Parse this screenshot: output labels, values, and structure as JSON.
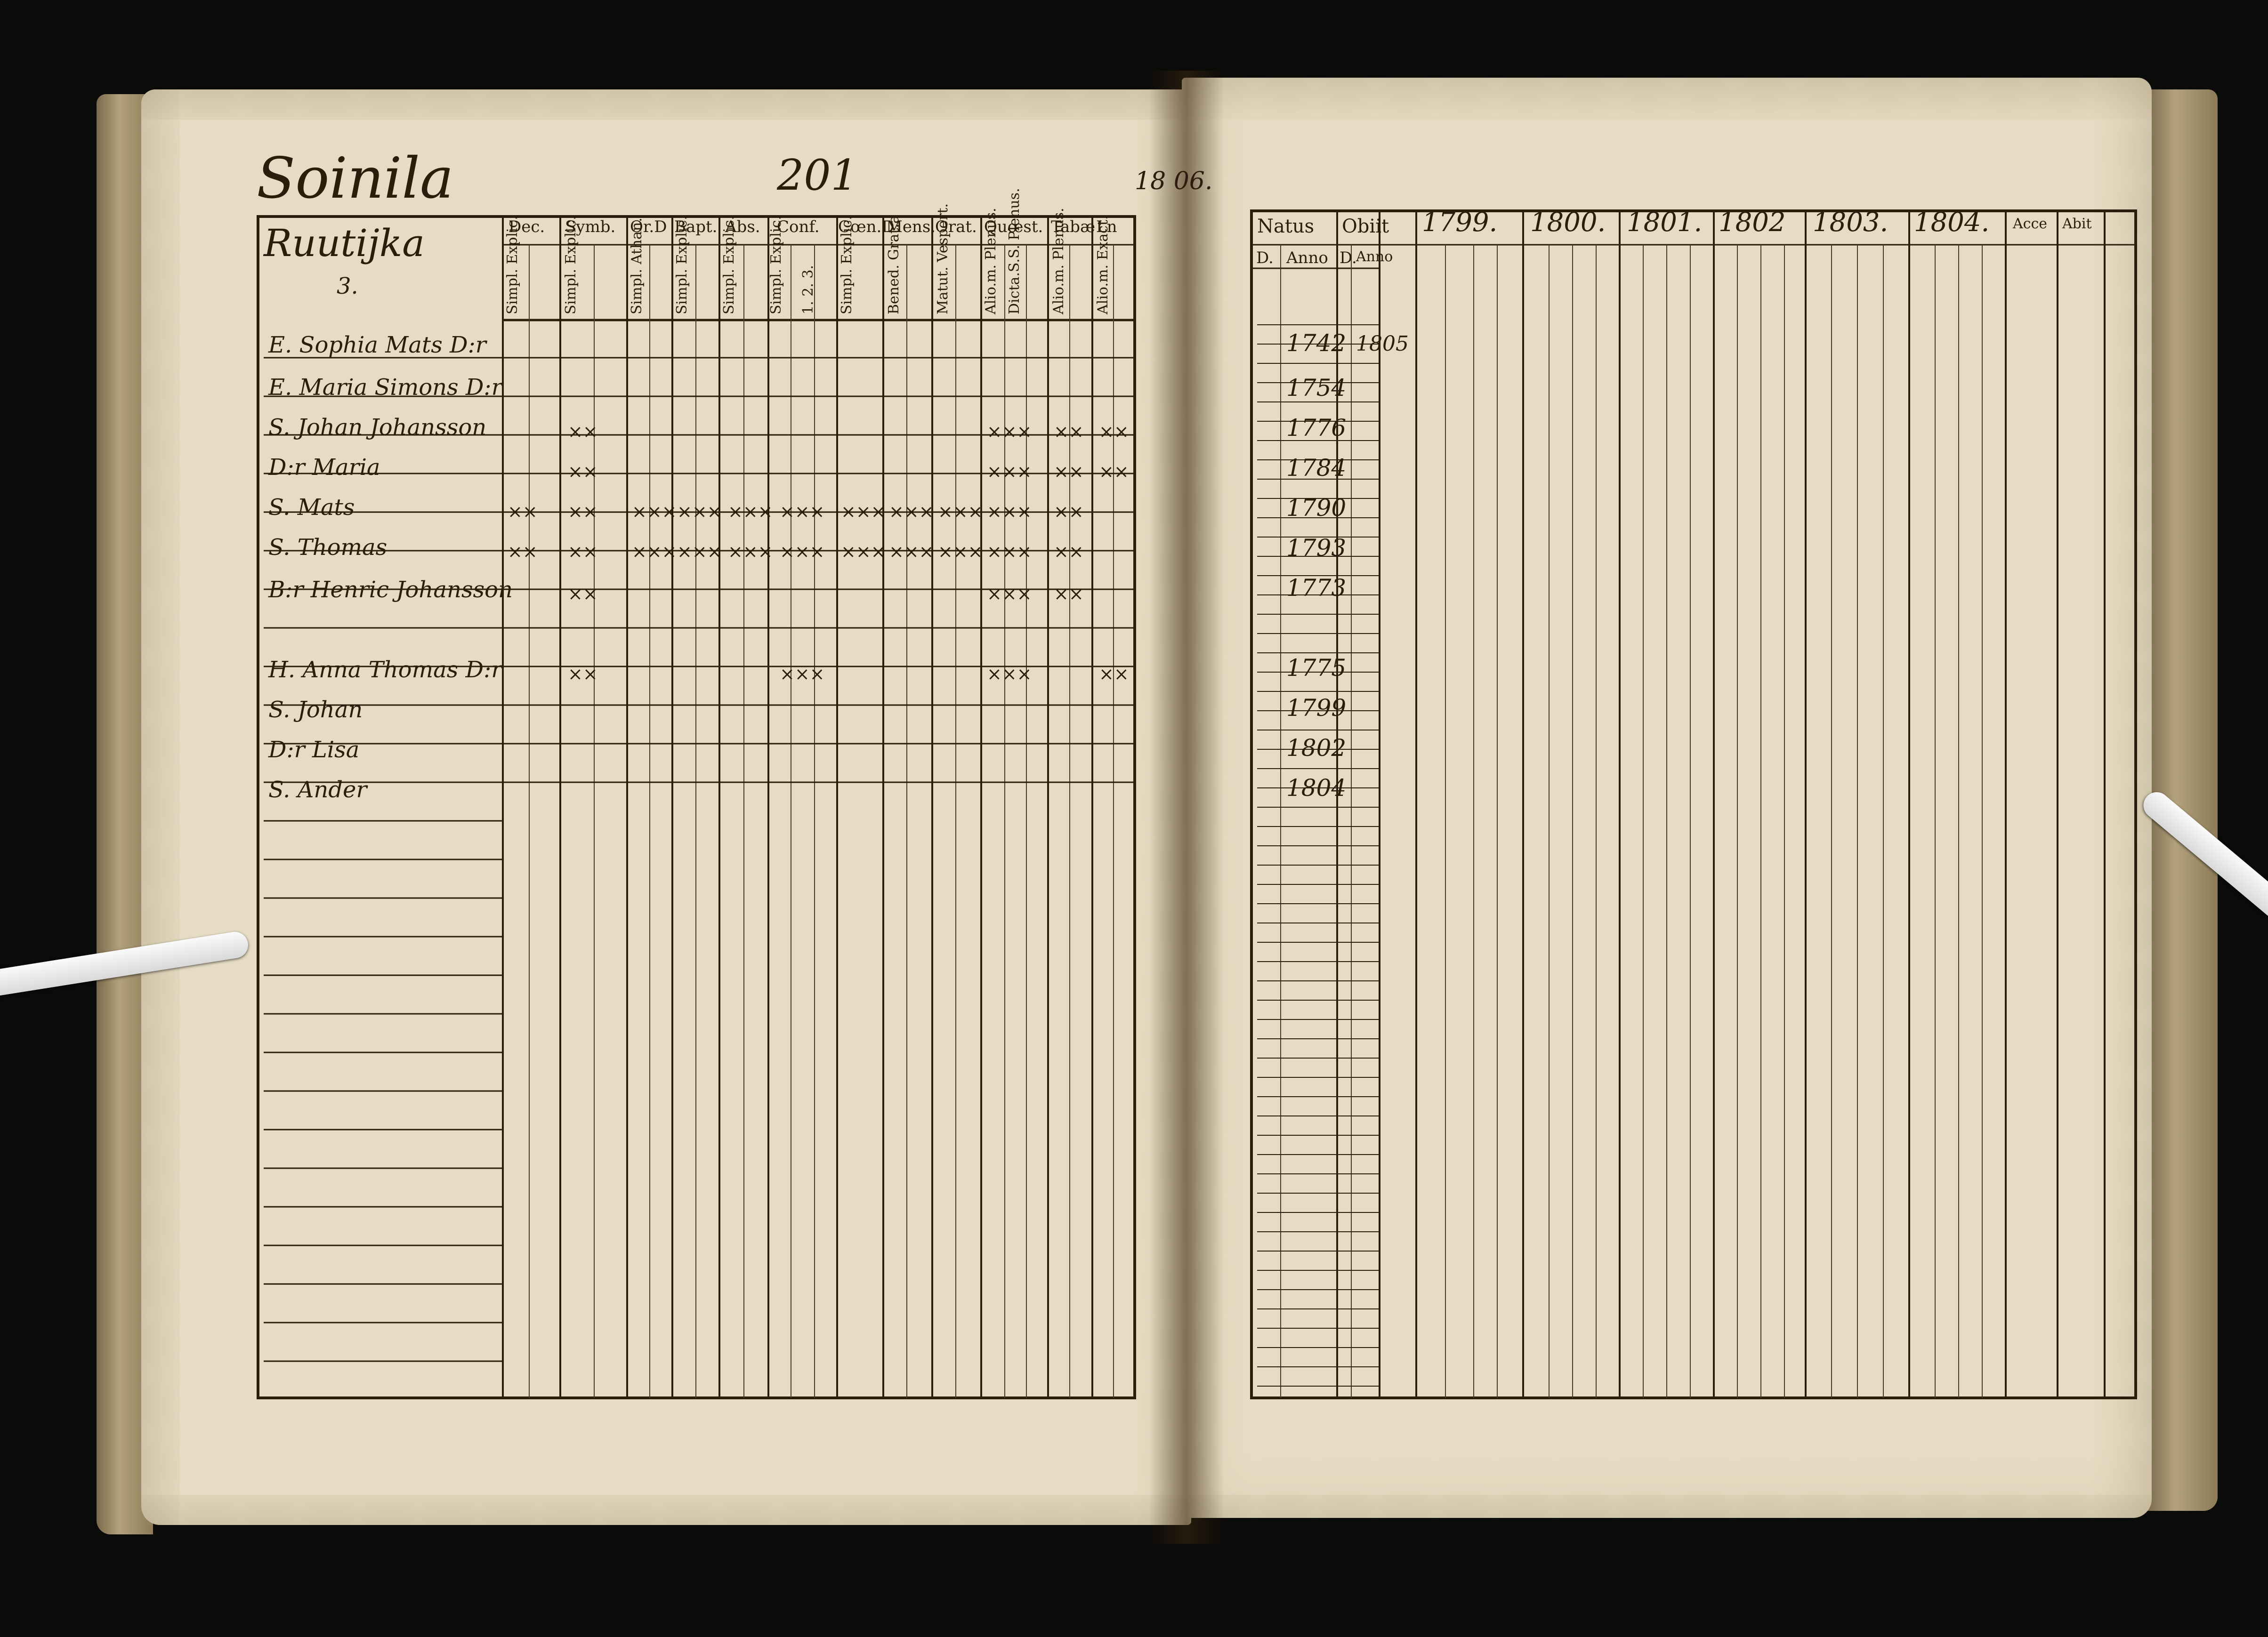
{
  "left_page": {
    "village": "Soinila",
    "page_number": "201",
    "house_name": "Ruutijka",
    "house_number": "3.",
    "column_headers": [
      "Dec.",
      "Symb.",
      "Or.D",
      "Bapt.",
      "Abs.",
      "Conf.",
      "Cœn.D",
      "Mens.",
      "Orat.",
      "Quœst.",
      "Tabæ",
      "Ln"
    ],
    "sub_headers": [
      "Simpl. Explic.",
      "Simpl. Explic.",
      "Simpl. Athan.",
      "Simpl. Explic.",
      "Simpl. Explic.",
      "Simpl. Explic.",
      "1. 2. 3.",
      "Simpl. Explic.",
      "Bened. Grat.a",
      "Matut. Vespert.",
      "Alio.m. Plenus.",
      "Dicta.S.S. Plenus.",
      "Alio.m. Plenus.",
      "Alio.m. Exact."
    ],
    "persons": [
      "E. Sophia Mats D:r",
      "E. Maria Simons D:r",
      "S. Johan Johansson",
      "D:r Maria",
      "S. Mats",
      "S. Thomas",
      "B:r Henric Johansson",
      "H. Anna Thomas D:r",
      "S. Johan",
      "D:r Lisa",
      "S. Ander"
    ]
  },
  "margin_note": "18 06.",
  "right_page": {
    "headers": [
      "Natus",
      "Obiit",
      "1799.",
      "1800.",
      "1801.",
      "1802",
      "1803.",
      "1804.",
      "Acce",
      "Abit"
    ],
    "sub_headers": [
      "D.",
      "Anno",
      "D.",
      "Anno"
    ],
    "birth_years": [
      "1742",
      "1754",
      "1776",
      "1784",
      "1790",
      "1793",
      "1773",
      "1775",
      "1799",
      "1802",
      "1804"
    ],
    "death_year": "1805"
  }
}
